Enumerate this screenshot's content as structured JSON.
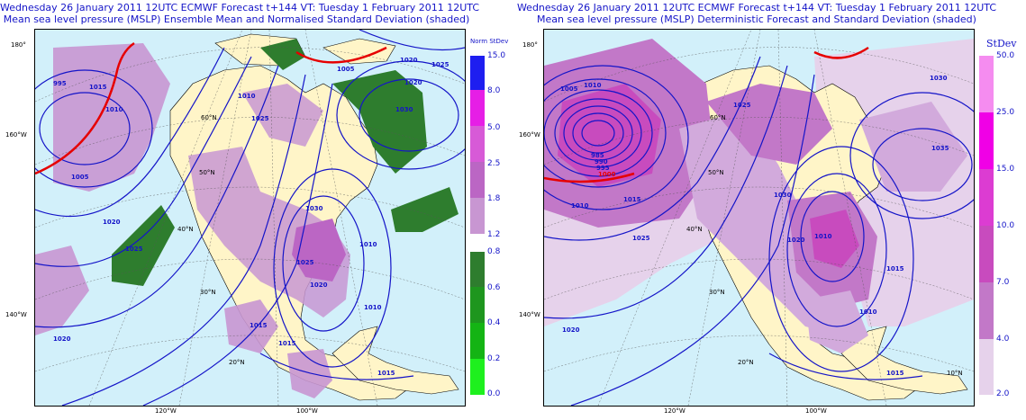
{
  "left_panel": {
    "title_line1": "Wednesday 26 January 2011 12UTC ECMWF Forecast t+144  VT: Tuesday 1 February 2011 12UTC",
    "title_line2": "Mean sea level pressure (MSLP) Ensemble Mean and Normalised Standard Deviation (shaded)",
    "colorbar_title": "Norm StDev",
    "colorbar_upper": [
      {
        "label": "15.0",
        "color": "#1e1ef0"
      },
      {
        "label": "8.0",
        "color": "#e61ee6"
      },
      {
        "label": "5.0",
        "color": "#d75ad7"
      },
      {
        "label": "2.5",
        "color": "#bb66c4"
      },
      {
        "label": "1.8",
        "color": "#c896d2"
      },
      {
        "label": "1.2",
        "color": "#ffffff"
      }
    ],
    "colorbar_lower": [
      {
        "label": "0.8",
        "color": "#2e7d2e"
      },
      {
        "label": "0.6",
        "color": "#1e961e"
      },
      {
        "label": "0.4",
        "color": "#14b414"
      },
      {
        "label": "0.2",
        "color": "#14d214"
      },
      {
        "label": "0.0",
        "color": "#1ef01e"
      }
    ],
    "contour_labels": [
      "1005",
      "1010",
      "1015",
      "1020",
      "1025",
      "995",
      "1010",
      "1005",
      "1020",
      "1025",
      "1030",
      "1025",
      "1020",
      "1010",
      "1010",
      "1015",
      "1015",
      "1015",
      "1020",
      "1025",
      "1030",
      "1020"
    ],
    "lat_labels": [
      "20°N",
      "30°N",
      "40°N",
      "50°N",
      "60°N"
    ],
    "lon_labels_bottom": [
      "120°W",
      "100°W"
    ],
    "edge_labels": [
      "180°",
      "160°W",
      "140°W"
    ]
  },
  "right_panel": {
    "title_line1": "Wednesday 26 January 2011 12UTC ECMWF Forecast t+144  VT: Tuesday 1 February 2011 12UTC",
    "title_line2": "Mean sea level pressure (MSLP) Deterministic Forecast and Standard Deviation (shaded)",
    "colorbar_title": "StDev",
    "colorbar": [
      {
        "label": "50.0",
        "color": "#f58cf0"
      },
      {
        "label": "25.0",
        "color": "#f000e6"
      },
      {
        "label": "15.0",
        "color": "#dc3cd2"
      },
      {
        "label": "10.0",
        "color": "#c84bbe"
      },
      {
        "label": "7.0",
        "color": "#c278c8"
      },
      {
        "label": "4.0",
        "color": "#d2aadc"
      },
      {
        "label": "2.0",
        "color": "#e6d2eb"
      }
    ],
    "contour_labels": [
      "1005",
      "1010",
      "985",
      "990",
      "995",
      "1000",
      "1015",
      "1010",
      "1025",
      "1030",
      "1035",
      "1020",
      "1015",
      "1010",
      "1025",
      "1030",
      "1015",
      "1020",
      "1010"
    ],
    "lat_labels": [
      "20°N",
      "30°N",
      "40°N",
      "50°N",
      "60°N"
    ],
    "lon_labels_bottom": [
      "120°W",
      "100°W"
    ],
    "edge_labels": [
      "180°",
      "160°W",
      "140°W",
      "10°N"
    ]
  },
  "colors": {
    "title": "#1414c8",
    "ocean": "#d2f0fa",
    "land": "#fff5c8",
    "contour": "#1414c8",
    "ridge": "#e60000"
  }
}
